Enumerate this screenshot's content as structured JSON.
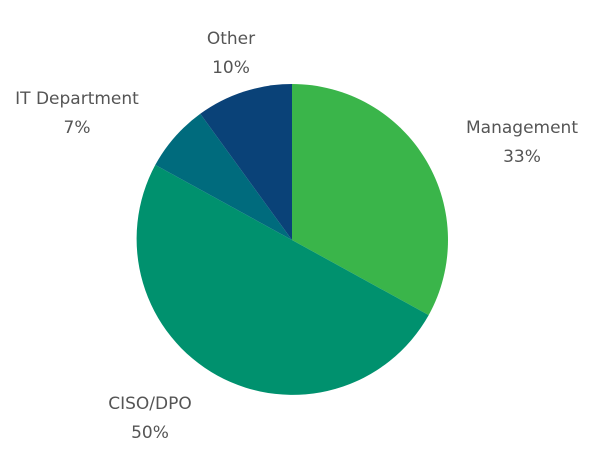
{
  "chart_data": {
    "type": "pie",
    "start_angle_deg": 0,
    "direction": "clockwise",
    "slices": [
      {
        "name": "Management",
        "value": 33,
        "value_label": "33%",
        "color": "#3ab54a"
      },
      {
        "name": "CISO/DPO",
        "value": 50,
        "value_label": "50%",
        "color": "#00916e"
      },
      {
        "name": "IT Department",
        "value": 7,
        "value_label": "7%",
        "color": "#006b7d"
      },
      {
        "name": "Other",
        "value": 10,
        "value_label": "10%",
        "color": "#0a4278"
      }
    ]
  }
}
